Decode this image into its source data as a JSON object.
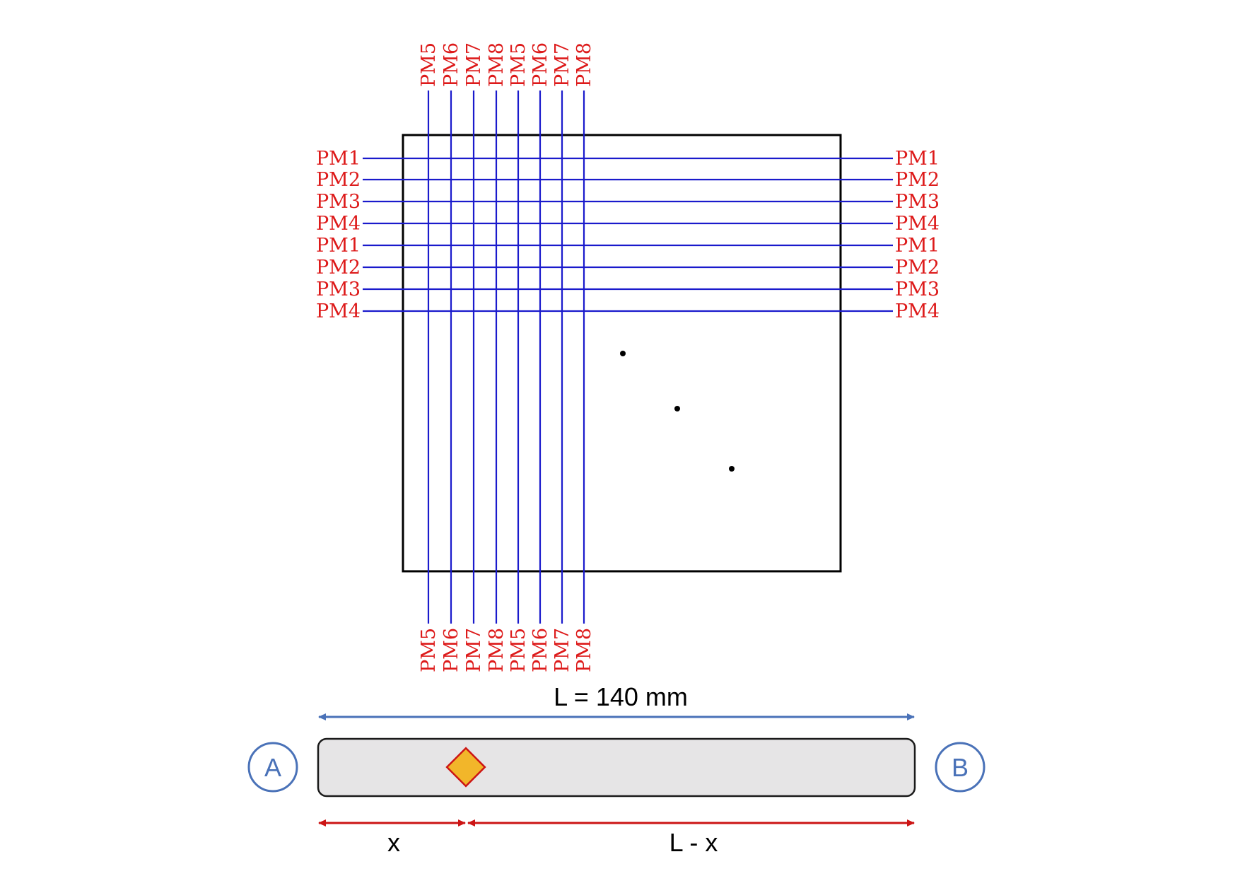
{
  "colors": {
    "fiber": "#1a1acc",
    "pm_label": "#dd1a1a",
    "frame": "#000000",
    "dimension_top": "#4a72b8",
    "dimension_bottom": "#cc1414",
    "endpoint": "#4a72b8",
    "bar_fill": "#e6e5e6",
    "bar_stroke": "#1a1a1a",
    "source_fill": "#f2b62a",
    "source_stroke": "#cc1414"
  },
  "grid": {
    "vertical_labels": [
      "PM5",
      "PM6",
      "PM7",
      "PM8",
      "PM5",
      "PM6",
      "PM7",
      "PM8"
    ],
    "left_labels": [
      "PM1",
      "PM2",
      "PM3",
      "PM4",
      "PM1",
      "PM2",
      "PM3",
      "PM4"
    ],
    "right_labels": [
      "PM1",
      "PM2",
      "PM3",
      "PM4",
      "PM1",
      "PM2",
      "PM3",
      "PM4"
    ]
  },
  "fiber_bar": {
    "length_label": "L = 140 mm",
    "end_a": "A",
    "end_b": "B",
    "x_label": "x",
    "remainder_label": "L - x"
  }
}
